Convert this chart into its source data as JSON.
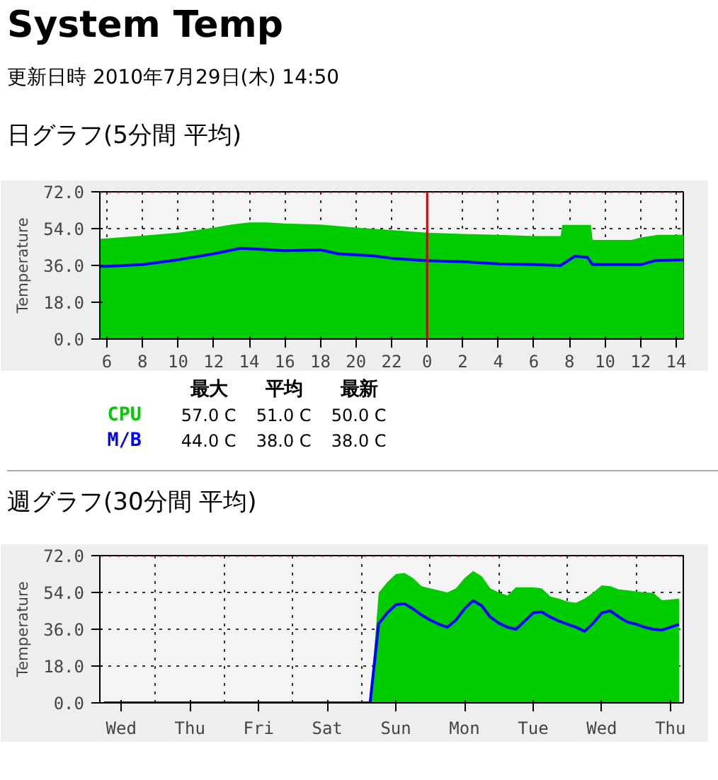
{
  "chart_data": [
    {
      "type": "area",
      "title": "System Temp",
      "subtitle": "更新日時 2010年7月29日(木) 14:50",
      "annotations": [
        "日グラフ(5分間 平均)"
      ],
      "ylabel": "Temperature",
      "xlim": [
        "2010-07-28T05:36",
        "2010-07-29T14:24"
      ],
      "ylim": [
        0,
        72
      ],
      "xticks": [
        {
          "value": "2010-07-28T06:00",
          "label": "6"
        },
        {
          "value": "2010-07-28T08:00",
          "label": "8"
        },
        {
          "value": "2010-07-28T10:00",
          "label": "10"
        },
        {
          "value": "2010-07-28T12:00",
          "label": "12"
        },
        {
          "value": "2010-07-28T14:00",
          "label": "14"
        },
        {
          "value": "2010-07-28T16:00",
          "label": "16"
        },
        {
          "value": "2010-07-28T18:00",
          "label": "18"
        },
        {
          "value": "2010-07-28T20:00",
          "label": "20"
        },
        {
          "value": "2010-07-28T22:00",
          "label": "22"
        },
        {
          "value": "2010-07-29T00:00",
          "label": "0"
        },
        {
          "value": "2010-07-29T02:00",
          "label": "2"
        },
        {
          "value": "2010-07-29T04:00",
          "label": "4"
        },
        {
          "value": "2010-07-29T06:00",
          "label": "6"
        },
        {
          "value": "2010-07-29T08:00",
          "label": "8"
        },
        {
          "value": "2010-07-29T10:00",
          "label": "10"
        },
        {
          "value": "2010-07-29T12:00",
          "label": "12"
        },
        {
          "value": "2010-07-29T14:00",
          "label": "14"
        }
      ],
      "yticks": [
        {
          "value": 0,
          "label": "0.0"
        },
        {
          "value": 18,
          "label": "18.0"
        },
        {
          "value": 36,
          "label": "36.0"
        },
        {
          "value": 54,
          "label": "54.0"
        },
        {
          "value": 72,
          "label": "72.0"
        }
      ],
      "grid": true,
      "ref_lines": [
        {
          "axis": "x",
          "value": "2010-07-29T00:00",
          "color": "#cc0000",
          "line_style": "solid"
        },
        {
          "axis": "y",
          "value": 72,
          "color": "#cc0000",
          "line_style": "dotted"
        }
      ],
      "series": [
        {
          "type": "area",
          "color": "#00cc00",
          "x": [
            "2010-07-28T05:36",
            "2010-07-28T06:00",
            "2010-07-28T08:00",
            "2010-07-28T10:00",
            "2010-07-28T12:00",
            "2010-07-28T13:00",
            "2010-07-28T14:00",
            "2010-07-28T15:00",
            "2010-07-28T16:00",
            "2010-07-28T18:00",
            "2010-07-28T20:00",
            "2010-07-28T22:00",
            "2010-07-29T00:00",
            "2010-07-29T02:00",
            "2010-07-29T04:00",
            "2010-07-29T06:00",
            "2010-07-29T07:30",
            "2010-07-29T07:36",
            "2010-07-29T09:12",
            "2010-07-29T09:18",
            "2010-07-29T11:30",
            "2010-07-29T12:00",
            "2010-07-29T13:00",
            "2010-07-29T14:24"
          ],
          "values": [
            49,
            49.2,
            50.5,
            52,
            54.5,
            56,
            57,
            57,
            56.5,
            56,
            54.5,
            53.3,
            52,
            51.4,
            51,
            50.4,
            50.4,
            55.8,
            55.8,
            48.5,
            48.5,
            49.7,
            51,
            51
          ]
        },
        {
          "type": "line",
          "color": "#0000ff",
          "x": [
            "2010-07-28T05:36",
            "2010-07-28T06:00",
            "2010-07-28T08:00",
            "2010-07-28T10:00",
            "2010-07-28T12:00",
            "2010-07-28T13:30",
            "2010-07-28T14:30",
            "2010-07-28T16:00",
            "2010-07-28T18:00",
            "2010-07-28T19:00",
            "2010-07-28T21:00",
            "2010-07-28T22:00",
            "2010-07-29T00:00",
            "2010-07-29T02:00",
            "2010-07-29T04:00",
            "2010-07-29T06:00",
            "2010-07-29T07:30",
            "2010-07-29T08:18",
            "2010-07-29T09:00",
            "2010-07-29T09:18",
            "2010-07-29T12:00",
            "2010-07-29T12:48",
            "2010-07-29T14:24"
          ],
          "values": [
            35.6,
            35.6,
            36.4,
            38.8,
            41.7,
            44.4,
            44,
            43.2,
            43.6,
            41.7,
            40.7,
            39.5,
            38.3,
            37.8,
            36.8,
            36.4,
            36,
            40.5,
            40,
            36.4,
            36.4,
            38.3,
            38.8
          ]
        }
      ]
    },
    {
      "type": "other",
      "categories": [
        "最大",
        "平均",
        "最新"
      ],
      "series": [
        {
          "name": "CPU",
          "color": "#00cc00",
          "values": [
            57,
            51,
            50
          ],
          "value_labels": [
            "57.0 C",
            "51.0 C",
            "50.0 C"
          ]
        },
        {
          "name": "M/B",
          "color": "#0000ff",
          "values": [
            44,
            38,
            38
          ],
          "value_labels": [
            "44.0 C",
            "38.0 C",
            "38.0 C"
          ]
        }
      ]
    },
    {
      "type": "area",
      "title": "週グラフ(30分間 平均)",
      "ylabel": "Temperature",
      "ylim": [
        0,
        72
      ],
      "categories": [
        null,
        null,
        "Wed",
        null,
        null,
        null,
        null,
        null,
        null,
        null,
        "Thu",
        null,
        null,
        null,
        null,
        null,
        null,
        null,
        "Fri",
        null,
        null,
        null,
        null,
        null,
        null,
        null,
        "Sat",
        null,
        null,
        null,
        null,
        null,
        null,
        null,
        "Sun",
        null,
        null,
        null,
        null,
        null,
        null,
        null,
        "Mon",
        null,
        null,
        null,
        null,
        null,
        null,
        null,
        "Tue",
        null,
        null,
        null,
        null,
        null,
        null,
        null,
        "Wed",
        null,
        null,
        null,
        null,
        null,
        null,
        null,
        "Thu",
        null
      ],
      "yticks": [
        {
          "value": 0,
          "label": "0.0"
        },
        {
          "value": 18,
          "label": "18.0"
        },
        {
          "value": 36,
          "label": "36.0"
        },
        {
          "value": 54,
          "label": "54.0"
        },
        {
          "value": 72,
          "label": "72.0"
        }
      ],
      "grid": true,
      "ref_lines": [
        {
          "axis": "y",
          "value": 72,
          "color": "#cc0000",
          "line_style": "dotted"
        }
      ],
      "series": [
        {
          "type": "area",
          "color": "#00cc00",
          "values": [
            0,
            0,
            0,
            0,
            0,
            0,
            0,
            0,
            0,
            0,
            0,
            0,
            0,
            0,
            0,
            0,
            0,
            0,
            0,
            0,
            0,
            0,
            0,
            0,
            0,
            0,
            0,
            0,
            0,
            0,
            0,
            0,
            53.8,
            59,
            63,
            63.5,
            61,
            57,
            56,
            55,
            54,
            56,
            61,
            64.5,
            62,
            56,
            54,
            52.5,
            56.5,
            56.5,
            56.5,
            56,
            52,
            51,
            49.5,
            49,
            51,
            54,
            57.5,
            57,
            55.5,
            55,
            54.5,
            54,
            53.8,
            50.2,
            50.5,
            51
          ]
        },
        {
          "type": "line",
          "color": "#0000ff",
          "values": [
            0,
            0,
            0,
            0,
            0,
            0,
            0,
            0,
            0,
            0,
            0,
            0,
            0,
            0,
            0,
            0,
            0,
            0,
            0,
            0,
            0,
            0,
            0,
            0,
            0,
            0,
            0,
            0,
            0,
            0,
            0,
            0,
            38.8,
            44,
            48,
            48.5,
            46,
            43,
            40.5,
            38.5,
            37,
            40.5,
            46,
            50,
            47.5,
            42,
            39,
            37,
            36,
            40,
            44,
            44.5,
            42,
            40,
            38.5,
            37,
            35,
            39,
            44,
            45,
            42,
            39.5,
            38.5,
            37,
            36,
            35.6,
            37,
            38.5
          ]
        }
      ]
    }
  ]
}
